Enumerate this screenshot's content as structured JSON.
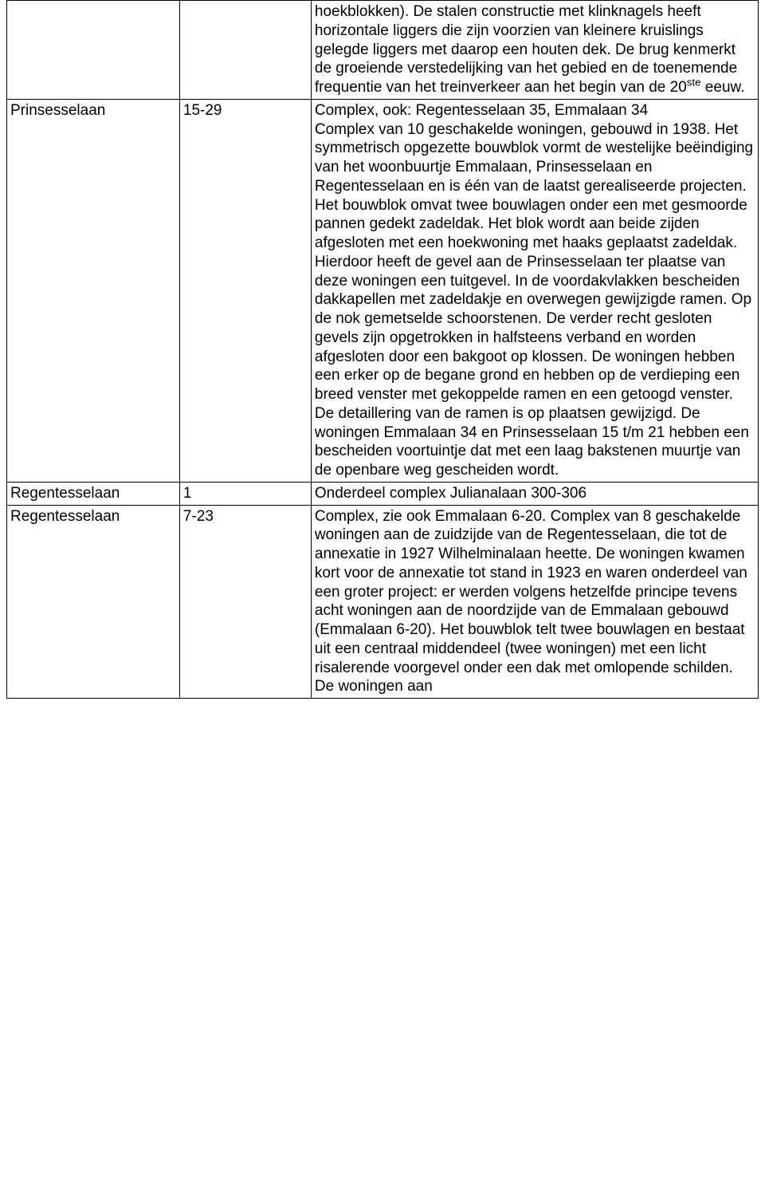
{
  "rows": [
    {
      "c1": "",
      "c2": "",
      "c3_html": "hoekblokken). De stalen constructie met klinknagels heeft horizontale liggers die zijn voorzien van kleinere kruislings gelegde liggers met daarop een houten dek. De brug kenmerkt de groeiende verstedelijking van het gebied en de toenemende frequentie van het treinverkeer aan het begin van de 20<sup>ste</sup> eeuw."
    },
    {
      "c1": "Prinsesselaan",
      "c2": "15-29",
      "c3_html": "Complex, ook: Regentesselaan 35, Emmalaan 34<br>Complex van 10 geschakelde woningen, gebouwd in 1938. Het symmetrisch opgezette bouwblok vormt de westelijke beëindiging van het woonbuurtje Emmalaan, Prinsesselaan en Regentesselaan en is één van de laatst gerealiseerde projecten. Het bouwblok omvat twee bouwlagen onder een met gesmoorde pannen gedekt zadeldak. Het blok wordt aan beide zijden afgesloten met een hoekwoning met haaks geplaatst zadeldak. Hierdoor heeft de gevel aan de Prinsesselaan ter plaatse van deze woningen een tuitgevel. In de voordakvlakken bescheiden dakkapellen met zadeldakje en overwegen gewijzigde ramen. Op de nok gemetselde schoorstenen. De verder recht gesloten gevels zijn opgetrokken in halfsteens verband en worden afgesloten door een bakgoot op klossen. De woningen hebben een erker op de begane grond en hebben op de verdieping een breed venster met gekoppelde ramen en een getoogd venster. De detaillering van de ramen is op plaatsen gewijzigd. De woningen Emmalaan 34 en Prinsesselaan 15 t/m 21 hebben een bescheiden voortuintje dat met een laag bakstenen muurtje van de openbare weg gescheiden wordt."
    },
    {
      "c1": "Regentesselaan",
      "c2": "1",
      "c3_html": "Onderdeel complex Julianalaan 300-306"
    },
    {
      "c1": "Regentesselaan",
      "c2": "7-23",
      "c3_html": "Complex, zie ook Emmalaan 6-20. Complex van 8 geschakelde woningen aan de zuidzijde van de Regentesselaan, die tot de annexatie in 1927 Wilhelminalaan heette. De woningen kwamen kort voor de annexatie tot stand in 1923 en waren onderdeel van een groter project: er werden volgens hetzelfde principe tevens acht woningen aan de noordzijde van de Emmalaan gebouwd (Emmalaan 6-20). Het bouwblok telt twee bouwlagen en bestaat uit een centraal middendeel (twee woningen) met een licht risalerende voorgevel onder een dak met omlopende schilden. De woningen aan"
    }
  ]
}
